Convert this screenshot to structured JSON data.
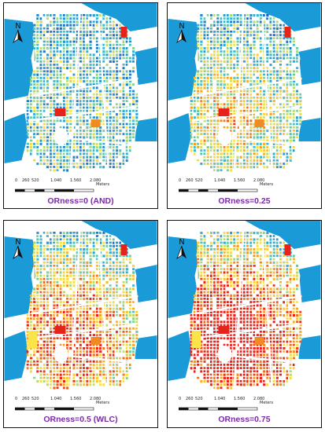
{
  "panels": [
    {
      "caption": "ORness=0 (AND)",
      "intensity": 0.0
    },
    {
      "caption": "ORness=0.25",
      "intensity": 0.25
    },
    {
      "caption": "ORness=0.5 (WLC)",
      "intensity": 0.5
    },
    {
      "caption": "ORness=0.75",
      "intensity": 0.75
    }
  ],
  "north_label": "N",
  "scale": {
    "ticks": [
      "0",
      "260",
      "520",
      "1.040",
      "1.560",
      "2.080"
    ],
    "unit": "Meters"
  },
  "colors": {
    "water": "#1a9bd7",
    "green": "#9cc79c",
    "low": "#1565c0",
    "mid": "#fbe34a",
    "high": "#e5231b",
    "orange": "#f08a24",
    "caption": "#7a2aa6"
  }
}
